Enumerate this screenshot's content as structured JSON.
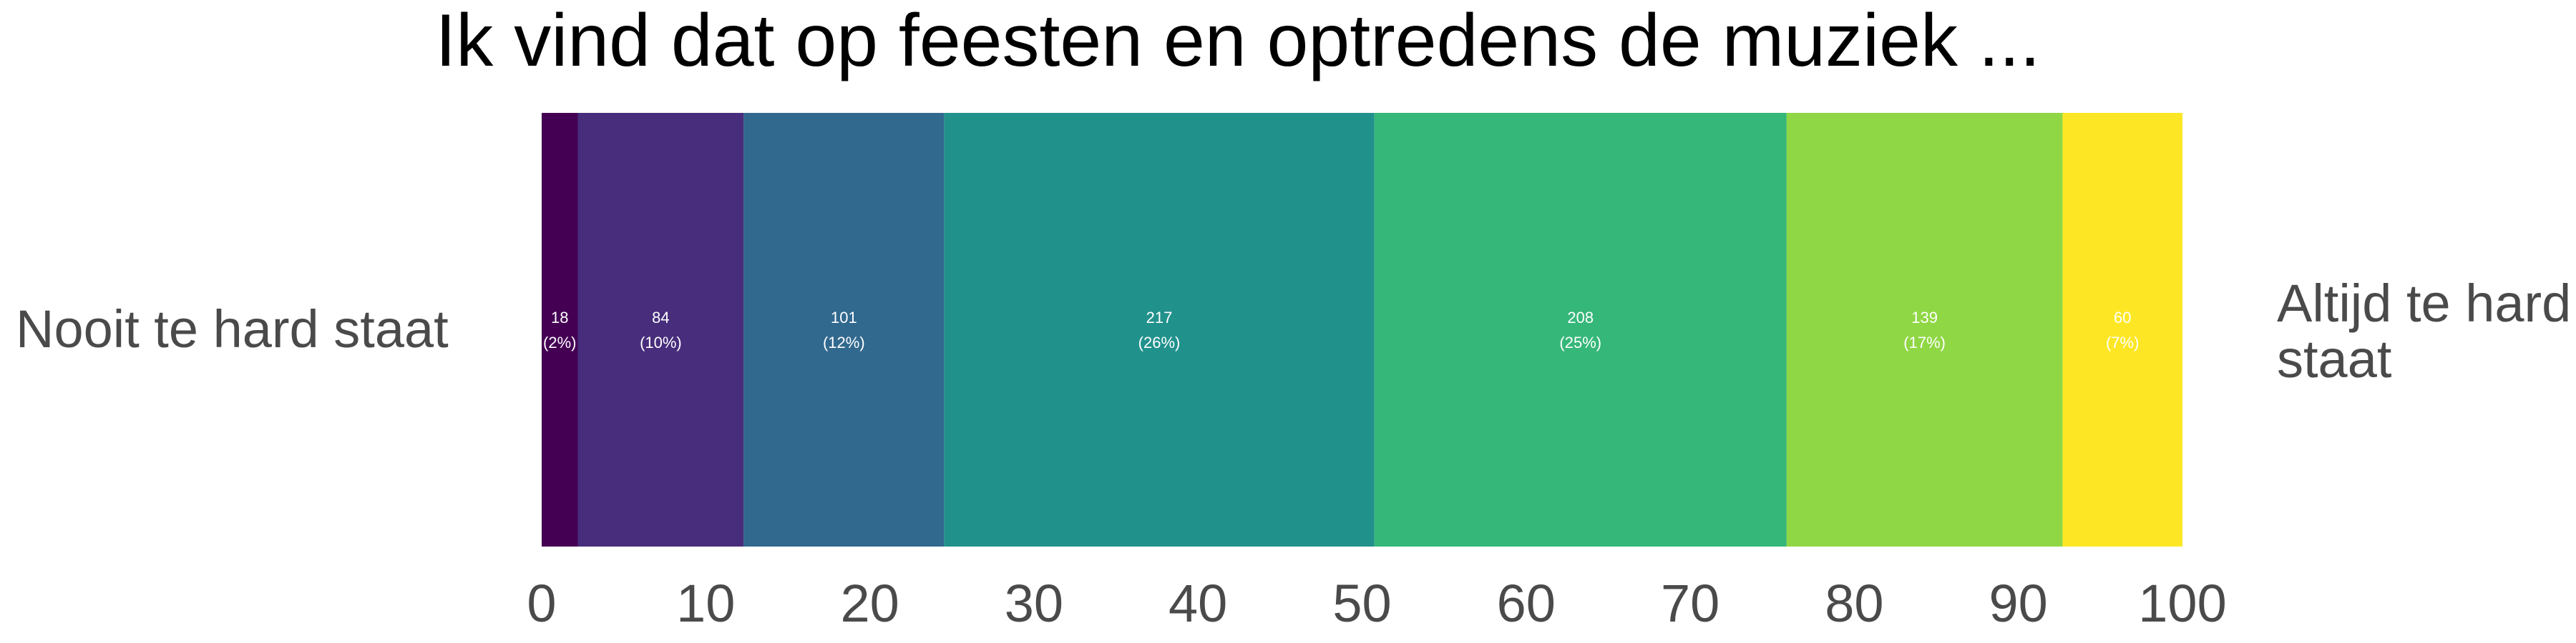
{
  "chart_data": {
    "type": "bar",
    "orientation": "horizontal-stacked-100",
    "title": "Ik vind dat op feesten en optredens de muziek ...",
    "left_label": "Nooit te hard staat",
    "right_label_lines": [
      "Altijd te hard",
      "staat"
    ],
    "xlim": [
      0,
      100
    ],
    "xticks": [
      0,
      10,
      20,
      30,
      40,
      50,
      60,
      70,
      80,
      90,
      100
    ],
    "grid": false,
    "legend": "none",
    "segments": [
      {
        "count": 18,
        "percent": 2.2,
        "count_label": "18",
        "percent_label": "(2%)",
        "color": "#440154"
      },
      {
        "count": 84,
        "percent": 10.1,
        "count_label": "84",
        "percent_label": "(10%)",
        "color": "#472d7b"
      },
      {
        "count": 101,
        "percent": 12.2,
        "count_label": "101",
        "percent_label": "(12%)",
        "color": "#31688e"
      },
      {
        "count": 217,
        "percent": 26.2,
        "count_label": "217",
        "percent_label": "(26%)",
        "color": "#21918c"
      },
      {
        "count": 208,
        "percent": 25.1,
        "count_label": "208",
        "percent_label": "(25%)",
        "color": "#35b779"
      },
      {
        "count": 139,
        "percent": 16.8,
        "count_label": "139",
        "percent_label": "(17%)",
        "color": "#8fd744"
      },
      {
        "count": 60,
        "percent": 7.3,
        "count_label": "60",
        "percent_label": "(7%)",
        "color": "#fde725"
      }
    ]
  }
}
